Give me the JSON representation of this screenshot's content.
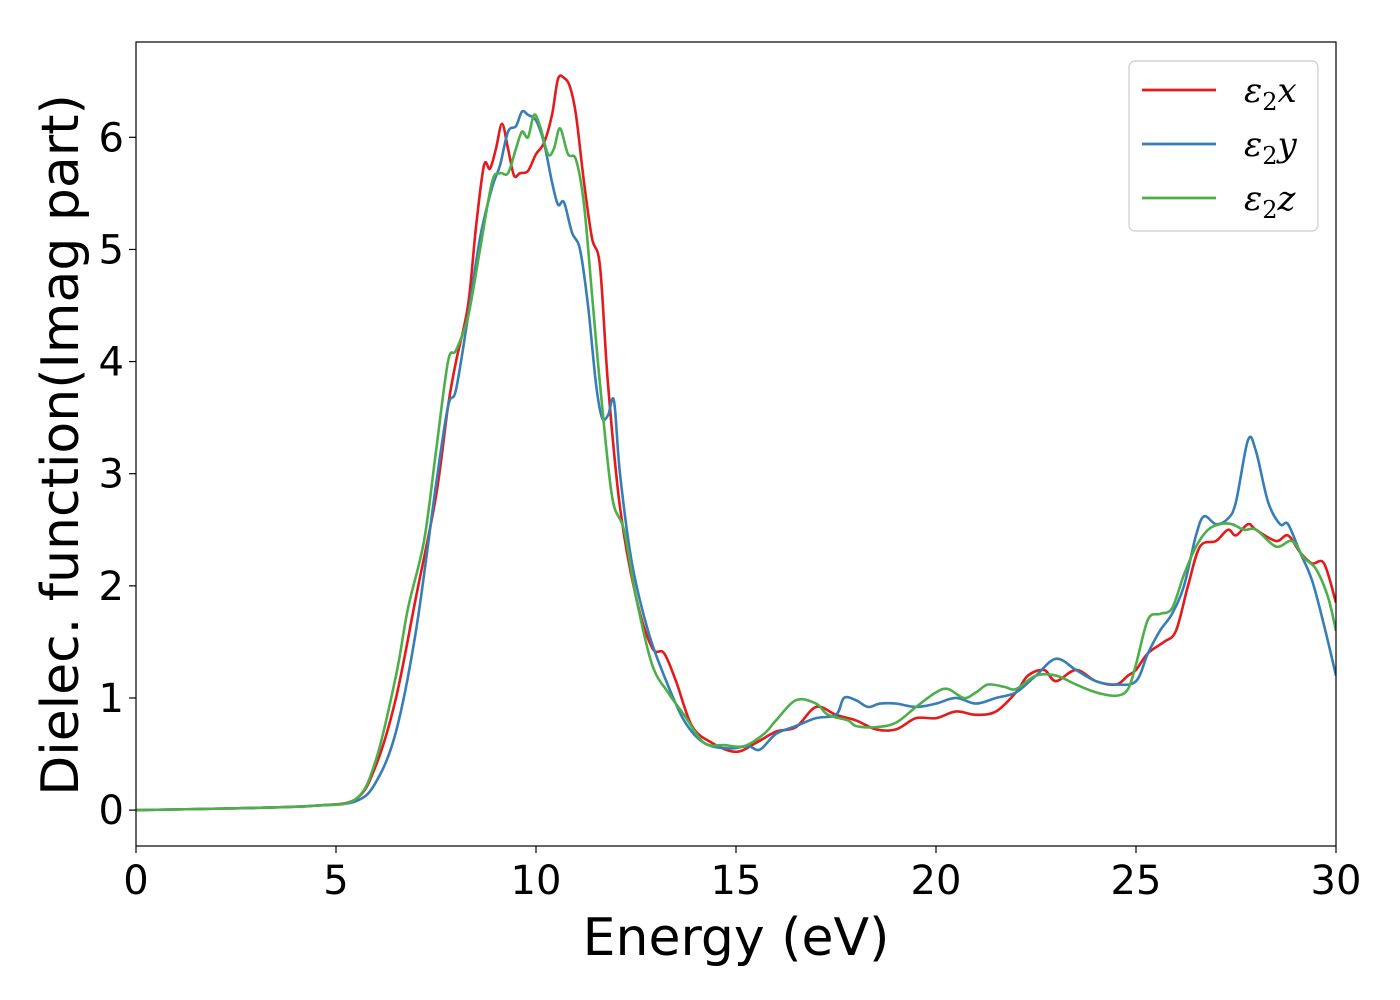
{
  "chart_data": {
    "type": "line",
    "xlabel": "Energy (eV)",
    "ylabel": "Dielec. function(Imag part)",
    "xlim": [
      0,
      30
    ],
    "ylim": [
      -0.32,
      6.85
    ],
    "xticks": [
      0,
      5,
      10,
      15,
      20,
      25,
      30
    ],
    "yticks": [
      0,
      1,
      2,
      3,
      4,
      5,
      6
    ],
    "grid": false,
    "legend_position": "top-right",
    "series": [
      {
        "name": "ε₂x",
        "legend_base": "ε",
        "legend_sub": "2",
        "legend_var": "x",
        "color": "#e41a1c",
        "points": [
          [
            0,
            0.0
          ],
          [
            3,
            0.02
          ],
          [
            4.5,
            0.04
          ],
          [
            5.5,
            0.1
          ],
          [
            6.0,
            0.4
          ],
          [
            6.5,
            1.0
          ],
          [
            7.0,
            1.9
          ],
          [
            7.5,
            2.8
          ],
          [
            7.8,
            3.6
          ],
          [
            8.0,
            4.0
          ],
          [
            8.3,
            4.5
          ],
          [
            8.5,
            5.2
          ],
          [
            8.7,
            5.75
          ],
          [
            8.85,
            5.72
          ],
          [
            9.0,
            5.9
          ],
          [
            9.15,
            6.12
          ],
          [
            9.3,
            5.9
          ],
          [
            9.45,
            5.66
          ],
          [
            9.6,
            5.68
          ],
          [
            9.8,
            5.7
          ],
          [
            10.0,
            5.85
          ],
          [
            10.2,
            5.95
          ],
          [
            10.4,
            6.2
          ],
          [
            10.55,
            6.52
          ],
          [
            10.7,
            6.53
          ],
          [
            10.85,
            6.45
          ],
          [
            11.0,
            6.2
          ],
          [
            11.2,
            5.6
          ],
          [
            11.4,
            5.1
          ],
          [
            11.6,
            4.85
          ],
          [
            11.8,
            3.8
          ],
          [
            12.1,
            2.7
          ],
          [
            12.5,
            1.9
          ],
          [
            12.9,
            1.45
          ],
          [
            13.2,
            1.4
          ],
          [
            13.5,
            1.15
          ],
          [
            13.9,
            0.75
          ],
          [
            14.4,
            0.6
          ],
          [
            15.0,
            0.52
          ],
          [
            15.5,
            0.6
          ],
          [
            16.0,
            0.7
          ],
          [
            16.5,
            0.74
          ],
          [
            17.0,
            0.92
          ],
          [
            17.5,
            0.85
          ],
          [
            18.0,
            0.8
          ],
          [
            18.5,
            0.72
          ],
          [
            19.0,
            0.72
          ],
          [
            19.5,
            0.82
          ],
          [
            20.0,
            0.82
          ],
          [
            20.5,
            0.88
          ],
          [
            21.0,
            0.85
          ],
          [
            21.5,
            0.88
          ],
          [
            22.0,
            1.05
          ],
          [
            22.3,
            1.2
          ],
          [
            22.7,
            1.25
          ],
          [
            23.0,
            1.15
          ],
          [
            23.5,
            1.25
          ],
          [
            24.0,
            1.15
          ],
          [
            24.5,
            1.12
          ],
          [
            24.8,
            1.2
          ],
          [
            25.0,
            1.25
          ],
          [
            25.3,
            1.4
          ],
          [
            25.7,
            1.5
          ],
          [
            26.0,
            1.6
          ],
          [
            26.3,
            2.0
          ],
          [
            26.6,
            2.35
          ],
          [
            27.0,
            2.4
          ],
          [
            27.3,
            2.5
          ],
          [
            27.5,
            2.45
          ],
          [
            27.8,
            2.55
          ],
          [
            28.0,
            2.5
          ],
          [
            28.5,
            2.4
          ],
          [
            28.8,
            2.45
          ],
          [
            29.1,
            2.3
          ],
          [
            29.4,
            2.2
          ],
          [
            29.7,
            2.2
          ],
          [
            30.0,
            1.85
          ]
        ]
      },
      {
        "name": "ε₂y",
        "legend_base": "ε",
        "legend_sub": "2",
        "legend_var": "y",
        "color": "#377eb8",
        "points": [
          [
            0,
            0.0
          ],
          [
            3,
            0.02
          ],
          [
            4.5,
            0.04
          ],
          [
            5.5,
            0.08
          ],
          [
            6.0,
            0.25
          ],
          [
            6.5,
            0.7
          ],
          [
            7.0,
            1.6
          ],
          [
            7.5,
            2.9
          ],
          [
            7.8,
            3.6
          ],
          [
            8.0,
            3.75
          ],
          [
            8.3,
            4.4
          ],
          [
            8.6,
            5.1
          ],
          [
            8.9,
            5.55
          ],
          [
            9.1,
            5.75
          ],
          [
            9.3,
            6.05
          ],
          [
            9.5,
            6.1
          ],
          [
            9.65,
            6.23
          ],
          [
            9.8,
            6.2
          ],
          [
            10.0,
            6.15
          ],
          [
            10.2,
            5.95
          ],
          [
            10.4,
            5.6
          ],
          [
            10.55,
            5.4
          ],
          [
            10.7,
            5.42
          ],
          [
            10.9,
            5.15
          ],
          [
            11.1,
            5.0
          ],
          [
            11.3,
            4.5
          ],
          [
            11.5,
            3.8
          ],
          [
            11.65,
            3.5
          ],
          [
            11.8,
            3.52
          ],
          [
            11.95,
            3.65
          ],
          [
            12.1,
            3.0
          ],
          [
            12.4,
            2.2
          ],
          [
            12.8,
            1.6
          ],
          [
            13.2,
            1.2
          ],
          [
            13.7,
            0.8
          ],
          [
            14.2,
            0.6
          ],
          [
            14.8,
            0.55
          ],
          [
            15.3,
            0.57
          ],
          [
            15.6,
            0.54
          ],
          [
            16.0,
            0.68
          ],
          [
            16.5,
            0.75
          ],
          [
            17.0,
            0.82
          ],
          [
            17.5,
            0.85
          ],
          [
            17.7,
            1.0
          ],
          [
            18.0,
            0.98
          ],
          [
            18.3,
            0.92
          ],
          [
            18.6,
            0.95
          ],
          [
            19.0,
            0.95
          ],
          [
            19.5,
            0.92
          ],
          [
            20.0,
            0.95
          ],
          [
            20.5,
            1.0
          ],
          [
            21.0,
            0.95
          ],
          [
            21.5,
            1.0
          ],
          [
            22.0,
            1.05
          ],
          [
            22.5,
            1.2
          ],
          [
            23.0,
            1.35
          ],
          [
            23.5,
            1.25
          ],
          [
            24.0,
            1.15
          ],
          [
            24.5,
            1.12
          ],
          [
            25.0,
            1.15
          ],
          [
            25.3,
            1.4
          ],
          [
            25.6,
            1.6
          ],
          [
            25.9,
            1.75
          ],
          [
            26.2,
            2.0
          ],
          [
            26.5,
            2.45
          ],
          [
            26.7,
            2.62
          ],
          [
            27.0,
            2.55
          ],
          [
            27.3,
            2.6
          ],
          [
            27.5,
            2.75
          ],
          [
            27.8,
            3.3
          ],
          [
            28.0,
            3.2
          ],
          [
            28.3,
            2.75
          ],
          [
            28.6,
            2.55
          ],
          [
            28.8,
            2.55
          ],
          [
            29.1,
            2.3
          ],
          [
            29.4,
            2.05
          ],
          [
            29.7,
            1.65
          ],
          [
            30.0,
            1.2
          ]
        ]
      },
      {
        "name": "ε₂z",
        "legend_base": "ε",
        "legend_sub": "2",
        "legend_var": "z",
        "color": "#4daf4a",
        "points": [
          [
            0,
            0.0
          ],
          [
            3,
            0.02
          ],
          [
            4.5,
            0.04
          ],
          [
            5.5,
            0.1
          ],
          [
            6.0,
            0.45
          ],
          [
            6.5,
            1.2
          ],
          [
            6.8,
            1.8
          ],
          [
            7.2,
            2.4
          ],
          [
            7.5,
            3.2
          ],
          [
            7.8,
            4.0
          ],
          [
            8.0,
            4.1
          ],
          [
            8.3,
            4.4
          ],
          [
            8.6,
            5.0
          ],
          [
            8.9,
            5.6
          ],
          [
            9.1,
            5.68
          ],
          [
            9.3,
            5.68
          ],
          [
            9.5,
            5.9
          ],
          [
            9.65,
            6.05
          ],
          [
            9.8,
            6.0
          ],
          [
            9.95,
            6.2
          ],
          [
            10.1,
            6.1
          ],
          [
            10.3,
            5.85
          ],
          [
            10.45,
            5.9
          ],
          [
            10.6,
            6.08
          ],
          [
            10.8,
            5.85
          ],
          [
            11.0,
            5.8
          ],
          [
            11.2,
            5.4
          ],
          [
            11.4,
            4.6
          ],
          [
            11.6,
            3.8
          ],
          [
            11.9,
            2.8
          ],
          [
            12.2,
            2.5
          ],
          [
            12.5,
            1.9
          ],
          [
            12.9,
            1.3
          ],
          [
            13.3,
            1.05
          ],
          [
            13.7,
            0.85
          ],
          [
            14.2,
            0.6
          ],
          [
            14.7,
            0.58
          ],
          [
            15.2,
            0.57
          ],
          [
            15.7,
            0.68
          ],
          [
            16.0,
            0.8
          ],
          [
            16.5,
            0.98
          ],
          [
            17.0,
            0.95
          ],
          [
            17.3,
            0.85
          ],
          [
            17.8,
            0.8
          ],
          [
            18.0,
            0.75
          ],
          [
            18.5,
            0.74
          ],
          [
            19.0,
            0.78
          ],
          [
            19.5,
            0.92
          ],
          [
            20.0,
            1.05
          ],
          [
            20.3,
            1.08
          ],
          [
            20.7,
            1.0
          ],
          [
            21.0,
            1.05
          ],
          [
            21.3,
            1.12
          ],
          [
            21.7,
            1.1
          ],
          [
            22.0,
            1.08
          ],
          [
            22.5,
            1.2
          ],
          [
            23.0,
            1.2
          ],
          [
            23.5,
            1.12
          ],
          [
            24.0,
            1.05
          ],
          [
            24.5,
            1.02
          ],
          [
            24.8,
            1.08
          ],
          [
            25.0,
            1.3
          ],
          [
            25.3,
            1.7
          ],
          [
            25.6,
            1.75
          ],
          [
            25.9,
            1.8
          ],
          [
            26.2,
            2.1
          ],
          [
            26.5,
            2.35
          ],
          [
            26.8,
            2.5
          ],
          [
            27.1,
            2.55
          ],
          [
            27.4,
            2.55
          ],
          [
            27.7,
            2.5
          ],
          [
            28.0,
            2.5
          ],
          [
            28.5,
            2.35
          ],
          [
            28.9,
            2.4
          ],
          [
            29.2,
            2.25
          ],
          [
            29.5,
            2.15
          ],
          [
            29.8,
            1.9
          ],
          [
            30.0,
            1.6
          ]
        ]
      }
    ]
  }
}
